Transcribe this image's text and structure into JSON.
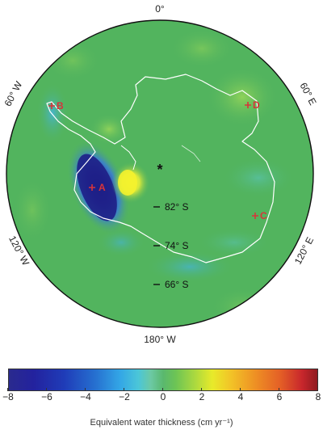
{
  "map": {
    "longitude_labels": {
      "top": "0°",
      "bottom": "180° W",
      "upper_left": "60° W",
      "upper_right": "60° E",
      "lower_left": "120° W",
      "lower_right": "120° E"
    },
    "latitude_labels": [
      "82° S",
      "74° S",
      "66° S"
    ],
    "pole_marker": "*",
    "stations": [
      {
        "id": "A",
        "marker": "+",
        "label": "A"
      },
      {
        "id": "B",
        "marker": "+",
        "label": "B"
      },
      {
        "id": "C",
        "marker": "+",
        "label": "C"
      },
      {
        "id": "D",
        "marker": "+",
        "label": "D"
      }
    ],
    "colors": {
      "background_green": "#52b45e",
      "coastline": "#ffffff",
      "station_marker": "#d8343a",
      "negative_max": "#1a1a7a",
      "positive_max": "#f2f02a"
    }
  },
  "colorbar": {
    "min": -8,
    "max": 8,
    "ticks": [
      "−8",
      "−6",
      "−4",
      "−2",
      "0",
      "2",
      "4",
      "6",
      "8"
    ],
    "label": "Equivalent water thickness (cm yr⁻¹)"
  }
}
